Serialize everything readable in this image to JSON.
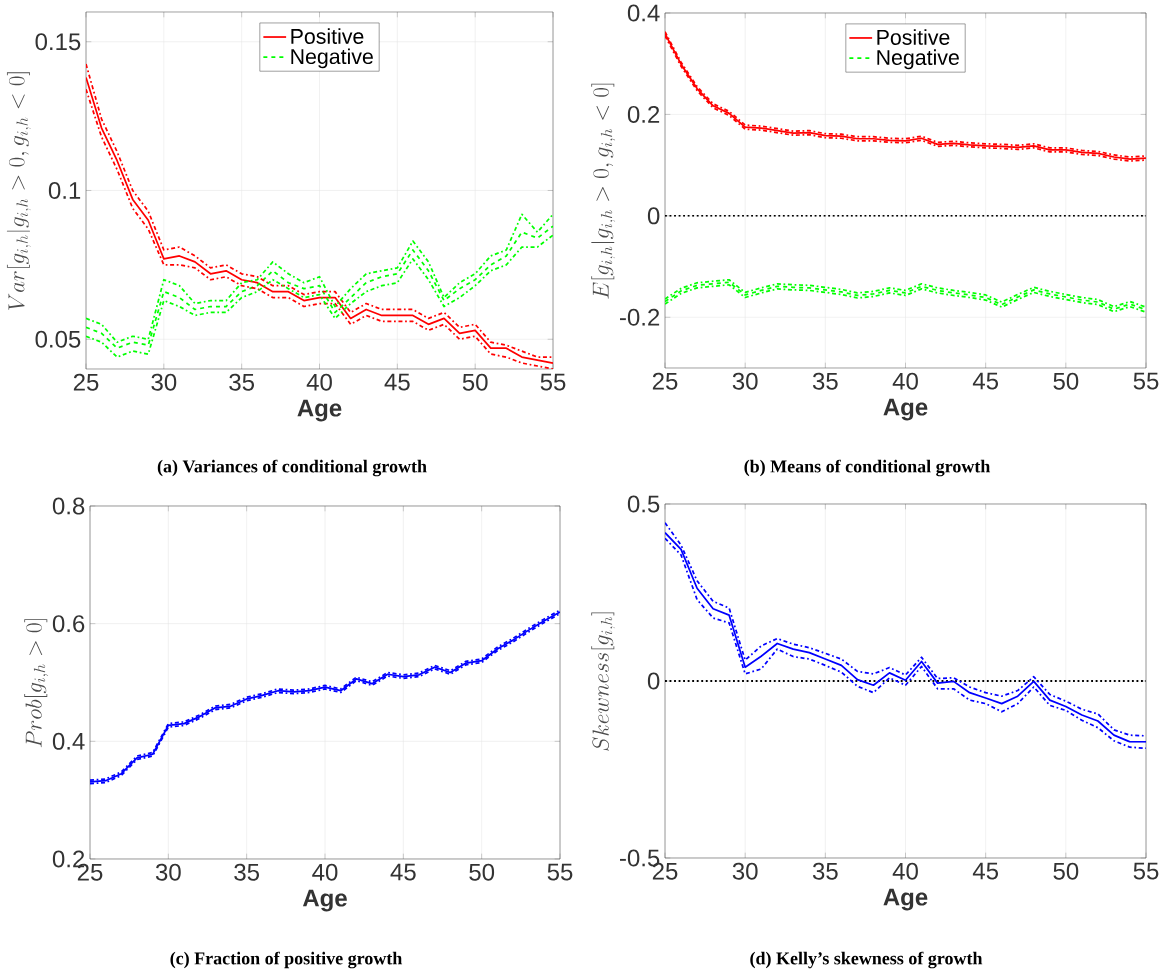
{
  "chart_data": [
    {
      "type": "line",
      "title": "(a) Variances of conditional growth",
      "xlabel": "Age",
      "ylabel": "Var[g_{i,h}|g_{i,h}>0,g_{i,h}<0]",
      "x": [
        25,
        26,
        27,
        28,
        29,
        30,
        31,
        32,
        33,
        34,
        35,
        36,
        37,
        38,
        39,
        40,
        41,
        42,
        43,
        44,
        45,
        46,
        47,
        48,
        49,
        50,
        51,
        52,
        53,
        54,
        55
      ],
      "xlim": [
        25,
        55
      ],
      "xticks": [
        25,
        30,
        35,
        40,
        45,
        50,
        55
      ],
      "ylim": [
        0.04,
        0.16
      ],
      "yticks": [
        0.05,
        0.1,
        0.15
      ],
      "grid": true,
      "legend": "top",
      "series": [
        {
          "name": "Positive",
          "color": "#ff0000",
          "line_style": "solid",
          "values": [
            0.138,
            0.121,
            0.11,
            0.097,
            0.09,
            0.077,
            0.078,
            0.076,
            0.072,
            0.073,
            0.07,
            0.069,
            0.066,
            0.066,
            0.063,
            0.064,
            0.064,
            0.057,
            0.06,
            0.058,
            0.058,
            0.058,
            0.055,
            0.057,
            0.052,
            0.053,
            0.047,
            0.047,
            0.044,
            0.043,
            0.042
          ]
        },
        {
          "name": "Negative",
          "color": "#00ff00",
          "line_style": "dashed",
          "values": [
            0.054,
            0.052,
            0.047,
            0.049,
            0.048,
            0.066,
            0.064,
            0.06,
            0.061,
            0.061,
            0.066,
            0.068,
            0.073,
            0.069,
            0.067,
            0.068,
            0.059,
            0.064,
            0.069,
            0.071,
            0.072,
            0.08,
            0.073,
            0.063,
            0.067,
            0.07,
            0.075,
            0.078,
            0.086,
            0.084,
            0.088
          ]
        },
        {
          "color": "#ff0000",
          "line_style": "dashdot",
          "values": [
            0.1425,
            0.124,
            0.113,
            0.1,
            0.093,
            0.08,
            0.081,
            0.078,
            0.074,
            0.075,
            0.072,
            0.071,
            0.068,
            0.068,
            0.065,
            0.066,
            0.066,
            0.059,
            0.062,
            0.06,
            0.06,
            0.06,
            0.057,
            0.059,
            0.054,
            0.055,
            0.049,
            0.048,
            0.046,
            0.044,
            0.044
          ]
        },
        {
          "color": "#ff0000",
          "line_style": "dashdot",
          "values": [
            0.134,
            0.118,
            0.107,
            0.094,
            0.087,
            0.075,
            0.075,
            0.074,
            0.07,
            0.071,
            0.068,
            0.067,
            0.064,
            0.064,
            0.061,
            0.062,
            0.062,
            0.055,
            0.058,
            0.056,
            0.056,
            0.056,
            0.053,
            0.055,
            0.05,
            0.051,
            0.045,
            0.044,
            0.042,
            0.041,
            0.04
          ]
        },
        {
          "color": "#00ff00",
          "line_style": "dashdot",
          "values": [
            0.057,
            0.055,
            0.049,
            0.051,
            0.05,
            0.07,
            0.068,
            0.062,
            0.063,
            0.063,
            0.069,
            0.07,
            0.076,
            0.072,
            0.069,
            0.071,
            0.061,
            0.067,
            0.072,
            0.073,
            0.074,
            0.083,
            0.076,
            0.064,
            0.069,
            0.072,
            0.078,
            0.08,
            0.092,
            0.086,
            0.092
          ]
        },
        {
          "color": "#00ff00",
          "line_style": "dashdot",
          "values": [
            0.051,
            0.049,
            0.044,
            0.046,
            0.045,
            0.063,
            0.061,
            0.058,
            0.059,
            0.059,
            0.064,
            0.066,
            0.07,
            0.067,
            0.064,
            0.065,
            0.057,
            0.062,
            0.066,
            0.068,
            0.069,
            0.077,
            0.07,
            0.061,
            0.064,
            0.068,
            0.073,
            0.075,
            0.081,
            0.081,
            0.085
          ]
        }
      ]
    },
    {
      "type": "line",
      "title": "(b) Means of conditional growth",
      "xlabel": "Age",
      "ylabel": "E[g_{i,h}|g_{i,h}>0,g_{i,h}<0]",
      "x": [
        25,
        26,
        27,
        28,
        29,
        30,
        31,
        32,
        33,
        34,
        35,
        36,
        37,
        38,
        39,
        40,
        41,
        42,
        43,
        44,
        45,
        46,
        47,
        48,
        49,
        50,
        51,
        52,
        53,
        54,
        55
      ],
      "xlim": [
        25,
        55
      ],
      "xticks": [
        25,
        30,
        35,
        40,
        45,
        50,
        55
      ],
      "ylim": [
        -0.3,
        0.4
      ],
      "yticks": [
        -0.2,
        0,
        0.2,
        0.4
      ],
      "grid": true,
      "legend": "top",
      "ref_lines": [
        {
          "axis": "y",
          "value": 0,
          "color": "#000000",
          "line_style": "dotted"
        }
      ],
      "series": [
        {
          "name": "Positive",
          "color": "#ff0000",
          "line_style": "solid",
          "values": [
            0.359,
            0.299,
            0.251,
            0.217,
            0.202,
            0.175,
            0.173,
            0.168,
            0.163,
            0.164,
            0.158,
            0.157,
            0.152,
            0.152,
            0.149,
            0.148,
            0.153,
            0.141,
            0.143,
            0.14,
            0.138,
            0.137,
            0.135,
            0.138,
            0.13,
            0.13,
            0.125,
            0.123,
            0.116,
            0.112,
            0.114
          ]
        },
        {
          "name": "Negative",
          "color": "#00ff00",
          "line_style": "dashed",
          "values": [
            -0.169,
            -0.148,
            -0.137,
            -0.134,
            -0.131,
            -0.156,
            -0.147,
            -0.139,
            -0.141,
            -0.142,
            -0.146,
            -0.15,
            -0.157,
            -0.154,
            -0.147,
            -0.152,
            -0.139,
            -0.147,
            -0.152,
            -0.156,
            -0.161,
            -0.175,
            -0.16,
            -0.146,
            -0.154,
            -0.16,
            -0.166,
            -0.17,
            -0.184,
            -0.174,
            -0.185
          ]
        },
        {
          "color": "#ff0000",
          "line_style": "dashdot",
          "values": [
            0.363,
            0.303,
            0.255,
            0.221,
            0.206,
            0.179,
            0.177,
            0.172,
            0.167,
            0.168,
            0.162,
            0.161,
            0.156,
            0.156,
            0.153,
            0.152,
            0.157,
            0.145,
            0.147,
            0.144,
            0.142,
            0.141,
            0.139,
            0.142,
            0.134,
            0.134,
            0.129,
            0.127,
            0.12,
            0.116,
            0.118
          ]
        },
        {
          "color": "#ff0000",
          "line_style": "dashdot",
          "values": [
            0.355,
            0.295,
            0.247,
            0.213,
            0.198,
            0.171,
            0.169,
            0.164,
            0.159,
            0.16,
            0.154,
            0.153,
            0.148,
            0.148,
            0.145,
            0.144,
            0.149,
            0.137,
            0.139,
            0.136,
            0.134,
            0.133,
            0.131,
            0.134,
            0.126,
            0.126,
            0.121,
            0.119,
            0.112,
            0.108,
            0.11
          ]
        },
        {
          "color": "#00ff00",
          "line_style": "dashdot",
          "values": [
            -0.164,
            -0.143,
            -0.132,
            -0.129,
            -0.126,
            -0.151,
            -0.142,
            -0.134,
            -0.136,
            -0.137,
            -0.141,
            -0.145,
            -0.152,
            -0.149,
            -0.142,
            -0.147,
            -0.134,
            -0.142,
            -0.147,
            -0.151,
            -0.156,
            -0.17,
            -0.155,
            -0.141,
            -0.149,
            -0.155,
            -0.161,
            -0.165,
            -0.179,
            -0.169,
            -0.18
          ]
        },
        {
          "color": "#00ff00",
          "line_style": "dashdot",
          "values": [
            -0.174,
            -0.153,
            -0.142,
            -0.139,
            -0.136,
            -0.161,
            -0.152,
            -0.144,
            -0.146,
            -0.147,
            -0.151,
            -0.155,
            -0.162,
            -0.159,
            -0.152,
            -0.157,
            -0.144,
            -0.152,
            -0.157,
            -0.161,
            -0.166,
            -0.18,
            -0.165,
            -0.151,
            -0.159,
            -0.165,
            -0.171,
            -0.175,
            -0.189,
            -0.179,
            -0.19
          ]
        }
      ]
    },
    {
      "type": "line",
      "title": "(c) Fraction of positive growth",
      "xlabel": "Age",
      "ylabel": "Prob[g_{i,h}>0]",
      "x": [
        25,
        26,
        27,
        28,
        29,
        30,
        31,
        32,
        33,
        34,
        35,
        36,
        37,
        38,
        39,
        40,
        41,
        42,
        43,
        44,
        45,
        46,
        47,
        48,
        49,
        50,
        51,
        52,
        53,
        54,
        55
      ],
      "xlim": [
        25,
        55
      ],
      "xticks": [
        25,
        30,
        35,
        40,
        45,
        50,
        55
      ],
      "ylim": [
        0.2,
        0.8
      ],
      "yticks": [
        0.2,
        0.4,
        0.6,
        0.8
      ],
      "grid": true,
      "series": [
        {
          "color": "#0000ff",
          "line_style": "solid",
          "values": [
            0.331,
            0.333,
            0.345,
            0.372,
            0.378,
            0.427,
            0.43,
            0.442,
            0.457,
            0.46,
            0.472,
            0.478,
            0.486,
            0.484,
            0.486,
            0.492,
            0.486,
            0.506,
            0.498,
            0.514,
            0.51,
            0.513,
            0.526,
            0.517,
            0.533,
            0.537,
            0.557,
            0.572,
            0.589,
            0.605,
            0.62
          ]
        },
        {
          "color": "#0000ff",
          "line_style": "dashdot",
          "values": [
            0.334,
            0.336,
            0.348,
            0.375,
            0.381,
            0.43,
            0.433,
            0.445,
            0.46,
            0.463,
            0.475,
            0.481,
            0.489,
            0.487,
            0.489,
            0.495,
            0.489,
            0.509,
            0.501,
            0.517,
            0.513,
            0.516,
            0.529,
            0.52,
            0.536,
            0.54,
            0.56,
            0.575,
            0.592,
            0.608,
            0.623
          ]
        },
        {
          "color": "#0000ff",
          "line_style": "dashdot",
          "values": [
            0.328,
            0.33,
            0.342,
            0.369,
            0.375,
            0.424,
            0.427,
            0.439,
            0.454,
            0.457,
            0.469,
            0.475,
            0.483,
            0.481,
            0.483,
            0.489,
            0.483,
            0.503,
            0.495,
            0.511,
            0.507,
            0.51,
            0.523,
            0.514,
            0.53,
            0.534,
            0.554,
            0.569,
            0.586,
            0.602,
            0.617
          ]
        }
      ]
    },
    {
      "type": "line",
      "title": "(d) Kelly’s skewness of growth",
      "xlabel": "Age",
      "ylabel": "Skewness[g_{i,h}]",
      "x": [
        25,
        26,
        27,
        28,
        29,
        30,
        31,
        32,
        33,
        34,
        35,
        36,
        37,
        38,
        39,
        40,
        41,
        42,
        43,
        44,
        45,
        46,
        47,
        48,
        49,
        50,
        51,
        52,
        53,
        54,
        55
      ],
      "xlim": [
        25,
        55
      ],
      "xticks": [
        25,
        30,
        35,
        40,
        45,
        50,
        55
      ],
      "ylim": [
        -0.5,
        0.5
      ],
      "yticks": [
        -0.5,
        0,
        0.5
      ],
      "grid": true,
      "ref_lines": [
        {
          "axis": "y",
          "value": 0,
          "color": "#000000",
          "line_style": "dotted"
        }
      ],
      "series": [
        {
          "color": "#0000ff",
          "line_style": "solid",
          "values": [
            0.419,
            0.372,
            0.262,
            0.204,
            0.186,
            0.039,
            0.07,
            0.106,
            0.09,
            0.08,
            0.062,
            0.044,
            0.004,
            -0.012,
            0.023,
            0.002,
            0.055,
            -0.006,
            -0.001,
            -0.033,
            -0.048,
            -0.064,
            -0.043,
            -0.001,
            -0.054,
            -0.072,
            -0.096,
            -0.113,
            -0.153,
            -0.172,
            -0.172
          ]
        },
        {
          "color": "#0000ff",
          "line_style": "dashdot",
          "values": [
            0.447,
            0.384,
            0.283,
            0.225,
            0.206,
            0.059,
            0.099,
            0.12,
            0.104,
            0.094,
            0.078,
            0.062,
            0.027,
            0.02,
            0.038,
            0.017,
            0.067,
            0.007,
            0.009,
            -0.017,
            -0.033,
            -0.043,
            -0.027,
            0.012,
            -0.038,
            -0.057,
            -0.08,
            -0.093,
            -0.138,
            -0.153,
            -0.155
          ]
        },
        {
          "color": "#0000ff",
          "line_style": "dashdot",
          "values": [
            0.403,
            0.356,
            0.23,
            0.178,
            0.164,
            0.02,
            0.034,
            0.09,
            0.069,
            0.062,
            0.044,
            0.025,
            -0.015,
            -0.033,
            0.009,
            -0.012,
            0.041,
            -0.022,
            -0.022,
            -0.054,
            -0.064,
            -0.087,
            -0.064,
            -0.017,
            -0.069,
            -0.083,
            -0.111,
            -0.132,
            -0.169,
            -0.187,
            -0.19
          ]
        }
      ]
    }
  ]
}
